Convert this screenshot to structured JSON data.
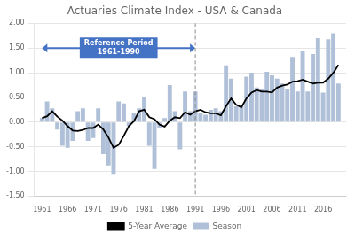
{
  "chart_data": {
    "type": "bar",
    "title": "Actuaries Climate Index - USA & Canada",
    "x": [
      1961,
      1962,
      1963,
      1964,
      1965,
      1966,
      1967,
      1968,
      1969,
      1970,
      1971,
      1972,
      1973,
      1974,
      1975,
      1976,
      1977,
      1978,
      1979,
      1980,
      1981,
      1982,
      1983,
      1984,
      1985,
      1986,
      1987,
      1988,
      1989,
      1990,
      1991,
      1992,
      1993,
      1994,
      1995,
      1996,
      1997,
      1998,
      1999,
      2000,
      2001,
      2002,
      2003,
      2004,
      2005,
      2006,
      2007,
      2008,
      2009,
      2010,
      2011,
      2012,
      2013,
      2014,
      2015,
      2016,
      2017,
      2018,
      2019
    ],
    "series": [
      {
        "name": "Season",
        "type": "bar",
        "color": "#afc0d8",
        "values": [
          0.08,
          0.42,
          0.28,
          -0.15,
          -0.48,
          -0.52,
          -0.38,
          0.22,
          0.28,
          -0.38,
          -0.32,
          0.28,
          -0.65,
          -0.88,
          -1.05,
          0.42,
          0.38,
          -0.08,
          0.18,
          0.28,
          0.5,
          -0.48,
          -0.95,
          -0.12,
          0.08,
          0.75,
          0.22,
          -0.55,
          0.62,
          0.22,
          0.62,
          0.18,
          0.15,
          0.25,
          0.28,
          0.22,
          1.15,
          0.88,
          0.32,
          0.35,
          0.92,
          1.0,
          0.7,
          0.68,
          1.02,
          0.95,
          0.88,
          0.78,
          0.68,
          1.32,
          0.62,
          1.45,
          0.62,
          1.38,
          1.7,
          0.6,
          1.68,
          1.8,
          0.78
        ]
      },
      {
        "name": "5-Year Average",
        "type": "line",
        "color": "#000000",
        "values": [
          0.08,
          0.12,
          0.22,
          0.11,
          0.03,
          -0.08,
          -0.17,
          -0.18,
          -0.16,
          -0.12,
          -0.12,
          -0.05,
          -0.15,
          -0.31,
          -0.52,
          -0.46,
          -0.28,
          -0.08,
          0.02,
          0.22,
          0.25,
          0.1,
          0.06,
          -0.05,
          -0.09,
          0.03,
          0.1,
          0.08,
          0.2,
          0.15,
          0.22,
          0.25,
          0.2,
          0.18,
          0.18,
          0.14,
          0.32,
          0.48,
          0.35,
          0.3,
          0.48,
          0.6,
          0.65,
          0.62,
          0.62,
          0.6,
          0.7,
          0.74,
          0.76,
          0.82,
          0.83,
          0.86,
          0.82,
          0.78,
          0.8,
          0.8,
          0.88,
          1.0,
          1.16
        ]
      }
    ],
    "xlim": [
      1959.5,
      2020.5
    ],
    "xticks": [
      1961,
      1966,
      1971,
      1976,
      1981,
      1986,
      1991,
      1996,
      2001,
      2006,
      2011,
      2016
    ],
    "ylim": [
      -1.5,
      2.0
    ],
    "yticks": [
      {
        "value": -1.5,
        "label": "-1.50"
      },
      {
        "value": -1.0,
        "label": "-1.00"
      },
      {
        "value": -0.5,
        "label": "-0.50"
      },
      {
        "value": 0.0,
        "label": "0.00"
      },
      {
        "value": 0.5,
        "label": "0.50"
      },
      {
        "value": 1.0,
        "label": "1.00"
      },
      {
        "value": 1.5,
        "label": "1.50"
      },
      {
        "value": 2.0,
        "label": "2.00"
      }
    ],
    "annotations": [
      {
        "text": "Reference Period\n1961-1990",
        "x_start": 1961,
        "x_end": 1991,
        "y": 1.5,
        "color": "#4472c4"
      },
      {
        "type": "vline",
        "x": 1991,
        "color": "#888888"
      }
    ],
    "grid": "y",
    "legend": "bottom"
  }
}
